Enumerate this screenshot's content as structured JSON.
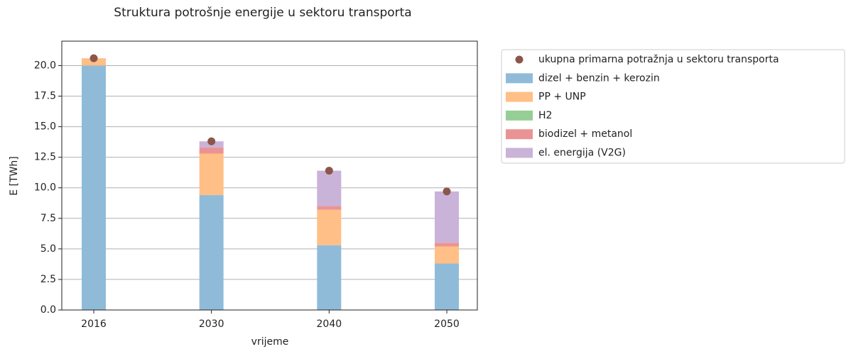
{
  "chart_data": {
    "type": "bar",
    "stacked": true,
    "title": "Struktura potrošnje energije u sektoru transporta",
    "xlabel": "vrijeme",
    "ylabel": "E [TWh]",
    "categories": [
      "2016",
      "2030",
      "2040",
      "2050"
    ],
    "ylim": [
      0,
      22
    ],
    "yticks": [
      {
        "value": 0,
        "label": "0.0"
      },
      2.5,
      {
        "value": 5,
        "label": "5.0"
      },
      7.5,
      {
        "value": 10,
        "label": "10.0"
      },
      12.5,
      {
        "value": 15,
        "label": "15.0"
      },
      17.5,
      {
        "value": 20,
        "label": "20.0"
      }
    ],
    "grid": true,
    "markers": {
      "name": "ukupna primarna potražnja u sektoru transporta",
      "color": "#8c564b",
      "values": [
        20.6,
        13.8,
        11.4,
        9.7
      ]
    },
    "series": [
      {
        "name": "dizel + benzin + kerozin",
        "color": "#8fbbd9",
        "values": [
          20.0,
          9.4,
          5.3,
          3.8
        ]
      },
      {
        "name": "PP + UNP",
        "color": "#ffbf86",
        "values": [
          0.6,
          3.4,
          2.9,
          1.4
        ]
      },
      {
        "name": "H2",
        "color": "#95cf95",
        "values": [
          0,
          0,
          0,
          0
        ]
      },
      {
        "name": "biodizel + metanol",
        "color": "#eb9394",
        "values": [
          0,
          0.5,
          0.3,
          0.3
        ]
      },
      {
        "name": "el. energija (V2G)",
        "color": "#c9b3d8",
        "values": [
          0,
          0.5,
          2.9,
          4.2
        ]
      }
    ]
  }
}
